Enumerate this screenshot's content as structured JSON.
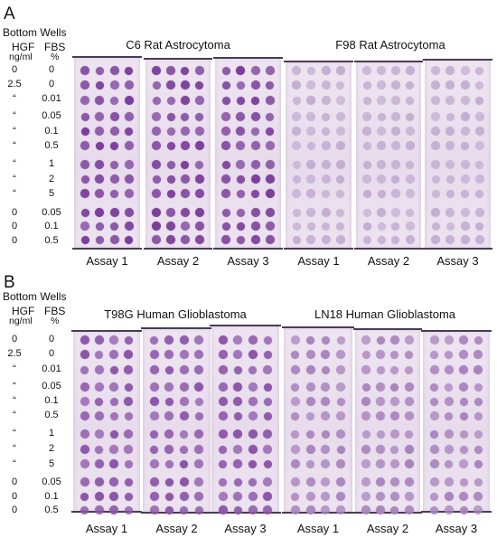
{
  "figure": {
    "panels": [
      {
        "letter": "A",
        "header_bottom_wells": "Bottom Wells",
        "header_hgf": "HGF",
        "header_fbs": "FBS",
        "unit_hgf": "ng/ml",
        "unit_fbs": "%",
        "rows": [
          {
            "hgf": "0",
            "fbs": "0"
          },
          {
            "hgf": "2.5",
            "fbs": "0"
          },
          {
            "hgf": "“",
            "fbs": "0.01"
          },
          {
            "hgf": "“",
            "fbs": "0.05"
          },
          {
            "hgf": "“",
            "fbs": "0.1"
          },
          {
            "hgf": "“",
            "fbs": "0.5"
          },
          {
            "hgf": "“",
            "fbs": "1"
          },
          {
            "hgf": "“",
            "fbs": "2"
          },
          {
            "hgf": "“",
            "fbs": "5"
          },
          {
            "hgf": "0",
            "fbs": "0.05"
          },
          {
            "hgf": "0",
            "fbs": "0.1"
          },
          {
            "hgf": "0",
            "fbs": "0.5"
          }
        ],
        "groups": [
          {
            "title": "C6 Rat Astrocytoma",
            "stain": "dark",
            "assays": [
              "Assay 1",
              "Assay 2",
              "Assay 3"
            ]
          },
          {
            "title": "F98 Rat Astrocytoma",
            "stain": "faint",
            "assays": [
              "Assay 1",
              "Assay 2",
              "Assay 3"
            ]
          }
        ]
      },
      {
        "letter": "B",
        "header_bottom_wells": "Bottom Wells",
        "header_hgf": "HGF",
        "header_fbs": "FBS",
        "unit_hgf": "ng/ml",
        "unit_fbs": "%",
        "rows": [
          {
            "hgf": "0",
            "fbs": "0"
          },
          {
            "hgf": "2.5",
            "fbs": "0"
          },
          {
            "hgf": "“",
            "fbs": "0.01"
          },
          {
            "hgf": "“",
            "fbs": "0.05"
          },
          {
            "hgf": "“",
            "fbs": "0.1"
          },
          {
            "hgf": "“",
            "fbs": "0.5"
          },
          {
            "hgf": "“",
            "fbs": "1"
          },
          {
            "hgf": "“",
            "fbs": "2"
          },
          {
            "hgf": "“",
            "fbs": "5"
          },
          {
            "hgf": "0",
            "fbs": "0.05"
          },
          {
            "hgf": "0",
            "fbs": "0.1"
          },
          {
            "hgf": "0",
            "fbs": "0.5"
          }
        ],
        "groups": [
          {
            "title": "T98G Human Glioblastoma",
            "stain": "medium",
            "assays": [
              "Assay 1",
              "Assay 2",
              "Assay 3"
            ]
          },
          {
            "title": "LN18 Human Glioblastoma",
            "stain": "light",
            "assays": [
              "Assay 1",
              "Assay 2",
              "Assay 3"
            ]
          }
        ]
      }
    ],
    "stain_colors": {
      "dark": "#7a3f9a",
      "medium": "#8b55a8",
      "light": "#a884bd",
      "faint": "#c3aed1"
    }
  }
}
